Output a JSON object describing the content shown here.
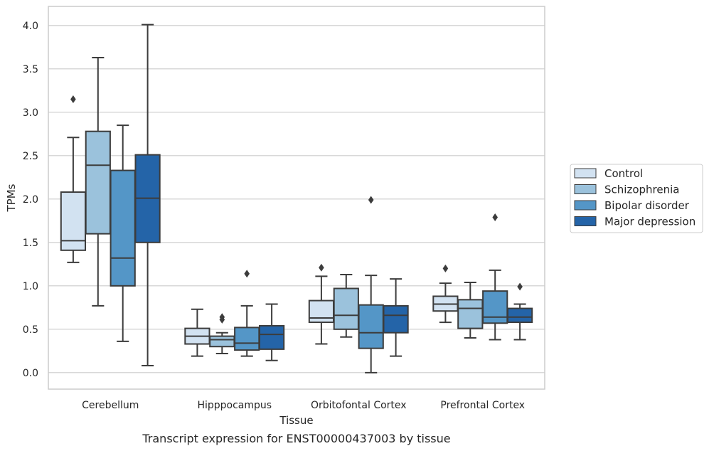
{
  "chart_data": {
    "type": "box",
    "title": "",
    "caption": "Transcript expression for ENST00000437003 by tissue",
    "xlabel": "Tissue",
    "ylabel": "TPMs",
    "ylim": [
      -0.19,
      4.22
    ],
    "yticks": [
      0.0,
      0.5,
      1.0,
      1.5,
      2.0,
      2.5,
      3.0,
      3.5,
      4.0
    ],
    "ytick_labels": [
      "0.0",
      "0.5",
      "1.0",
      "1.5",
      "2.0",
      "2.5",
      "3.0",
      "3.5",
      "4.0"
    ],
    "grid": "horizontal",
    "legend_position": "right",
    "categories": [
      "Cerebellum",
      "Hipppocampus",
      "Orbitofontal Cortex",
      "Prefrontal Cortex"
    ],
    "series": [
      {
        "name": "Control",
        "color": "#d2e2f1",
        "boxes": [
          {
            "whisker_low": 1.27,
            "q1": 1.41,
            "median": 1.52,
            "q3": 2.08,
            "whisker_high": 2.71,
            "outliers": [
              3.15
            ]
          },
          {
            "whisker_low": 0.19,
            "q1": 0.33,
            "median": 0.42,
            "q3": 0.51,
            "whisker_high": 0.73,
            "outliers": []
          },
          {
            "whisker_low": 0.33,
            "q1": 0.58,
            "median": 0.63,
            "q3": 0.83,
            "whisker_high": 1.11,
            "outliers": [
              1.21
            ]
          },
          {
            "whisker_low": 0.58,
            "q1": 0.71,
            "median": 0.79,
            "q3": 0.88,
            "whisker_high": 1.03,
            "outliers": [
              1.2
            ]
          }
        ]
      },
      {
        "name": "Schizophrenia",
        "color": "#9bc2dc",
        "boxes": [
          {
            "whisker_low": 0.77,
            "q1": 1.6,
            "median": 2.39,
            "q3": 2.78,
            "whisker_high": 3.63,
            "outliers": []
          },
          {
            "whisker_low": 0.22,
            "q1": 0.3,
            "median": 0.38,
            "q3": 0.42,
            "whisker_high": 0.46,
            "outliers": [
              0.61,
              0.64
            ]
          },
          {
            "whisker_low": 0.41,
            "q1": 0.5,
            "median": 0.66,
            "q3": 0.97,
            "whisker_high": 1.13,
            "outliers": []
          },
          {
            "whisker_low": 0.4,
            "q1": 0.51,
            "median": 0.74,
            "q3": 0.84,
            "whisker_high": 1.04,
            "outliers": []
          }
        ]
      },
      {
        "name": "Bipolar disorder",
        "color": "#5496c7",
        "boxes": [
          {
            "whisker_low": 0.36,
            "q1": 1.0,
            "median": 1.32,
            "q3": 2.33,
            "whisker_high": 2.85,
            "outliers": []
          },
          {
            "whisker_low": 0.19,
            "q1": 0.26,
            "median": 0.34,
            "q3": 0.52,
            "whisker_high": 0.77,
            "outliers": [
              1.14
            ]
          },
          {
            "whisker_low": 0.0,
            "q1": 0.28,
            "median": 0.46,
            "q3": 0.78,
            "whisker_high": 1.12,
            "outliers": [
              1.99
            ]
          },
          {
            "whisker_low": 0.38,
            "q1": 0.57,
            "median": 0.64,
            "q3": 0.94,
            "whisker_high": 1.18,
            "outliers": [
              1.79
            ]
          }
        ]
      },
      {
        "name": "Major depression",
        "color": "#2464a8",
        "boxes": [
          {
            "whisker_low": 0.08,
            "q1": 1.5,
            "median": 2.01,
            "q3": 2.51,
            "whisker_high": 4.01,
            "outliers": []
          },
          {
            "whisker_low": 0.14,
            "q1": 0.27,
            "median": 0.44,
            "q3": 0.54,
            "whisker_high": 0.79,
            "outliers": []
          },
          {
            "whisker_low": 0.19,
            "q1": 0.46,
            "median": 0.66,
            "q3": 0.77,
            "whisker_high": 1.08,
            "outliers": []
          },
          {
            "whisker_low": 0.38,
            "q1": 0.58,
            "median": 0.64,
            "q3": 0.74,
            "whisker_high": 0.79,
            "outliers": [
              0.99
            ]
          }
        ]
      }
    ]
  },
  "colors": {
    "background": "#ffffff",
    "grid": "#cccccc",
    "frame": "#cccccc",
    "line": "#3c3c3c",
    "text": "#262626"
  }
}
